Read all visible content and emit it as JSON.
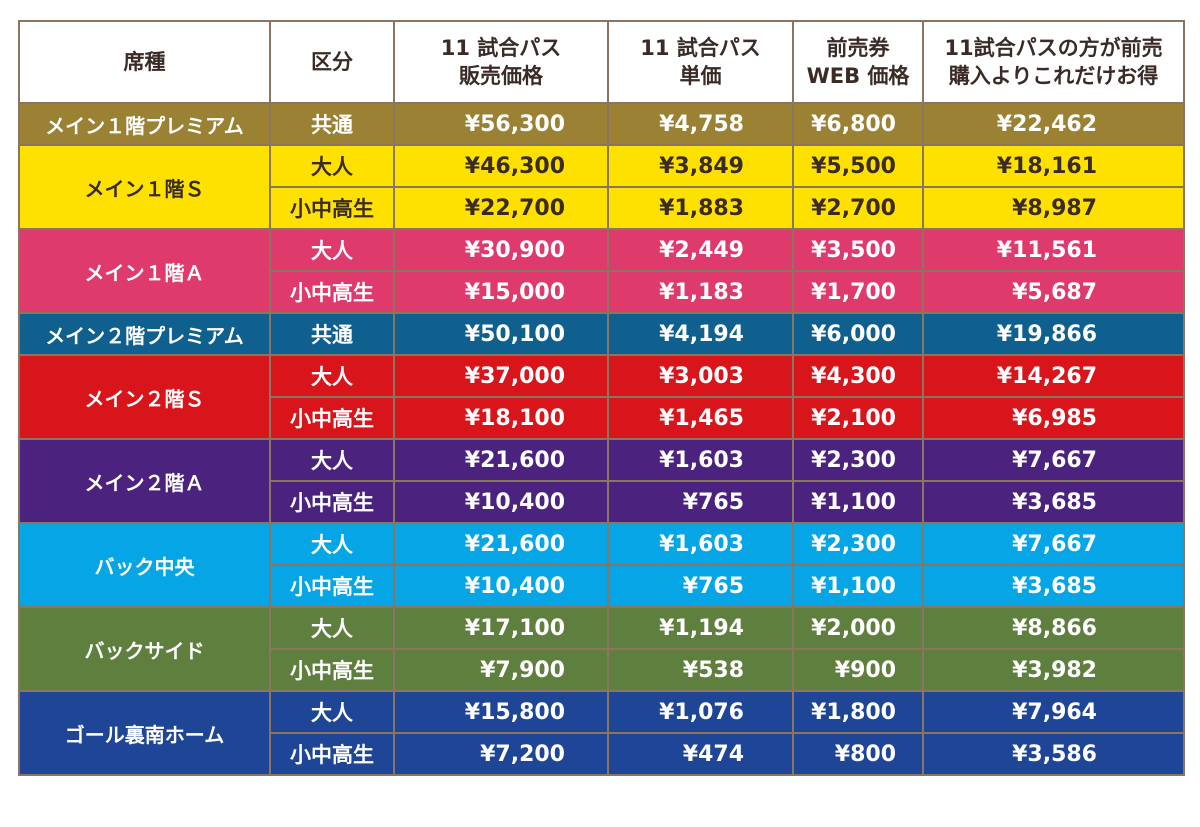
{
  "headers": {
    "seat": "席種",
    "category": "区分",
    "pass_price_1": "11 試合パス",
    "pass_price_2": "販売価格",
    "unit_price_1": "11 試合パス",
    "unit_price_2": "単価",
    "advance_1": "前売券",
    "advance_2": "WEB 価格",
    "savings_1": "11試合パスの方が前売",
    "savings_2": "購入よりこれだけお得"
  },
  "groups": [
    {
      "seat": "メイン１階プレミアム",
      "bg": "#9a8133",
      "fg": "#ffffff",
      "rows": [
        {
          "category": "共通",
          "pass_price": "¥56,300",
          "unit_price": "¥4,758",
          "advance_price": "¥6,800",
          "savings": "¥22,462"
        }
      ]
    },
    {
      "seat": "メイン１階Ｓ",
      "bg": "#ffe100",
      "fg": "#3a2b26",
      "rows": [
        {
          "category": "大人",
          "pass_price": "¥46,300",
          "unit_price": "¥3,849",
          "advance_price": "¥5,500",
          "savings": "¥18,161"
        },
        {
          "category": "小中高生",
          "pass_price": "¥22,700",
          "unit_price": "¥1,883",
          "advance_price": "¥2,700",
          "savings": "¥8,987"
        }
      ]
    },
    {
      "seat": "メイン１階Ａ",
      "bg": "#de3a6c",
      "fg": "#ffffff",
      "rows": [
        {
          "category": "大人",
          "pass_price": "¥30,900",
          "unit_price": "¥2,449",
          "advance_price": "¥3,500",
          "savings": "¥11,561"
        },
        {
          "category": "小中高生",
          "pass_price": "¥15,000",
          "unit_price": "¥1,183",
          "advance_price": "¥1,700",
          "savings": "¥5,687"
        }
      ]
    },
    {
      "seat": "メイン２階プレミアム",
      "bg": "#0f5f8f",
      "fg": "#ffffff",
      "rows": [
        {
          "category": "共通",
          "pass_price": "¥50,100",
          "unit_price": "¥4,194",
          "advance_price": "¥6,000",
          "savings": "¥19,866"
        }
      ]
    },
    {
      "seat": "メイン２階Ｓ",
      "bg": "#d9151c",
      "fg": "#ffffff",
      "rows": [
        {
          "category": "大人",
          "pass_price": "¥37,000",
          "unit_price": "¥3,003",
          "advance_price": "¥4,300",
          "savings": "¥14,267"
        },
        {
          "category": "小中高生",
          "pass_price": "¥18,100",
          "unit_price": "¥1,465",
          "advance_price": "¥2,100",
          "savings": "¥6,985"
        }
      ]
    },
    {
      "seat": "メイン２階Ａ",
      "bg": "#4b237e",
      "fg": "#ffffff",
      "rows": [
        {
          "category": "大人",
          "pass_price": "¥21,600",
          "unit_price": "¥1,603",
          "advance_price": "¥2,300",
          "savings": "¥7,667"
        },
        {
          "category": "小中高生",
          "pass_price": "¥10,400",
          "unit_price": "¥765",
          "advance_price": "¥1,100",
          "savings": "¥3,685"
        }
      ]
    },
    {
      "seat": "バック中央",
      "bg": "#05a5e6",
      "fg": "#ffffff",
      "rows": [
        {
          "category": "大人",
          "pass_price": "¥21,600",
          "unit_price": "¥1,603",
          "advance_price": "¥2,300",
          "savings": "¥7,667"
        },
        {
          "category": "小中高生",
          "pass_price": "¥10,400",
          "unit_price": "¥765",
          "advance_price": "¥1,100",
          "savings": "¥3,685"
        }
      ]
    },
    {
      "seat": "バックサイド",
      "bg": "#5f7f3e",
      "fg": "#ffffff",
      "rows": [
        {
          "category": "大人",
          "pass_price": "¥17,100",
          "unit_price": "¥1,194",
          "advance_price": "¥2,000",
          "savings": "¥8,866"
        },
        {
          "category": "小中高生",
          "pass_price": "¥7,900",
          "unit_price": "¥538",
          "advance_price": "¥900",
          "savings": "¥3,982"
        }
      ]
    },
    {
      "seat": "ゴール裏南ホーム",
      "bg": "#1f4597",
      "fg": "#ffffff",
      "rows": [
        {
          "category": "大人",
          "pass_price": "¥15,800",
          "unit_price": "¥1,076",
          "advance_price": "¥1,800",
          "savings": "¥7,964"
        },
        {
          "category": "小中高生",
          "pass_price": "¥7,200",
          "unit_price": "¥474",
          "advance_price": "¥800",
          "savings": "¥3,586"
        }
      ]
    }
  ]
}
